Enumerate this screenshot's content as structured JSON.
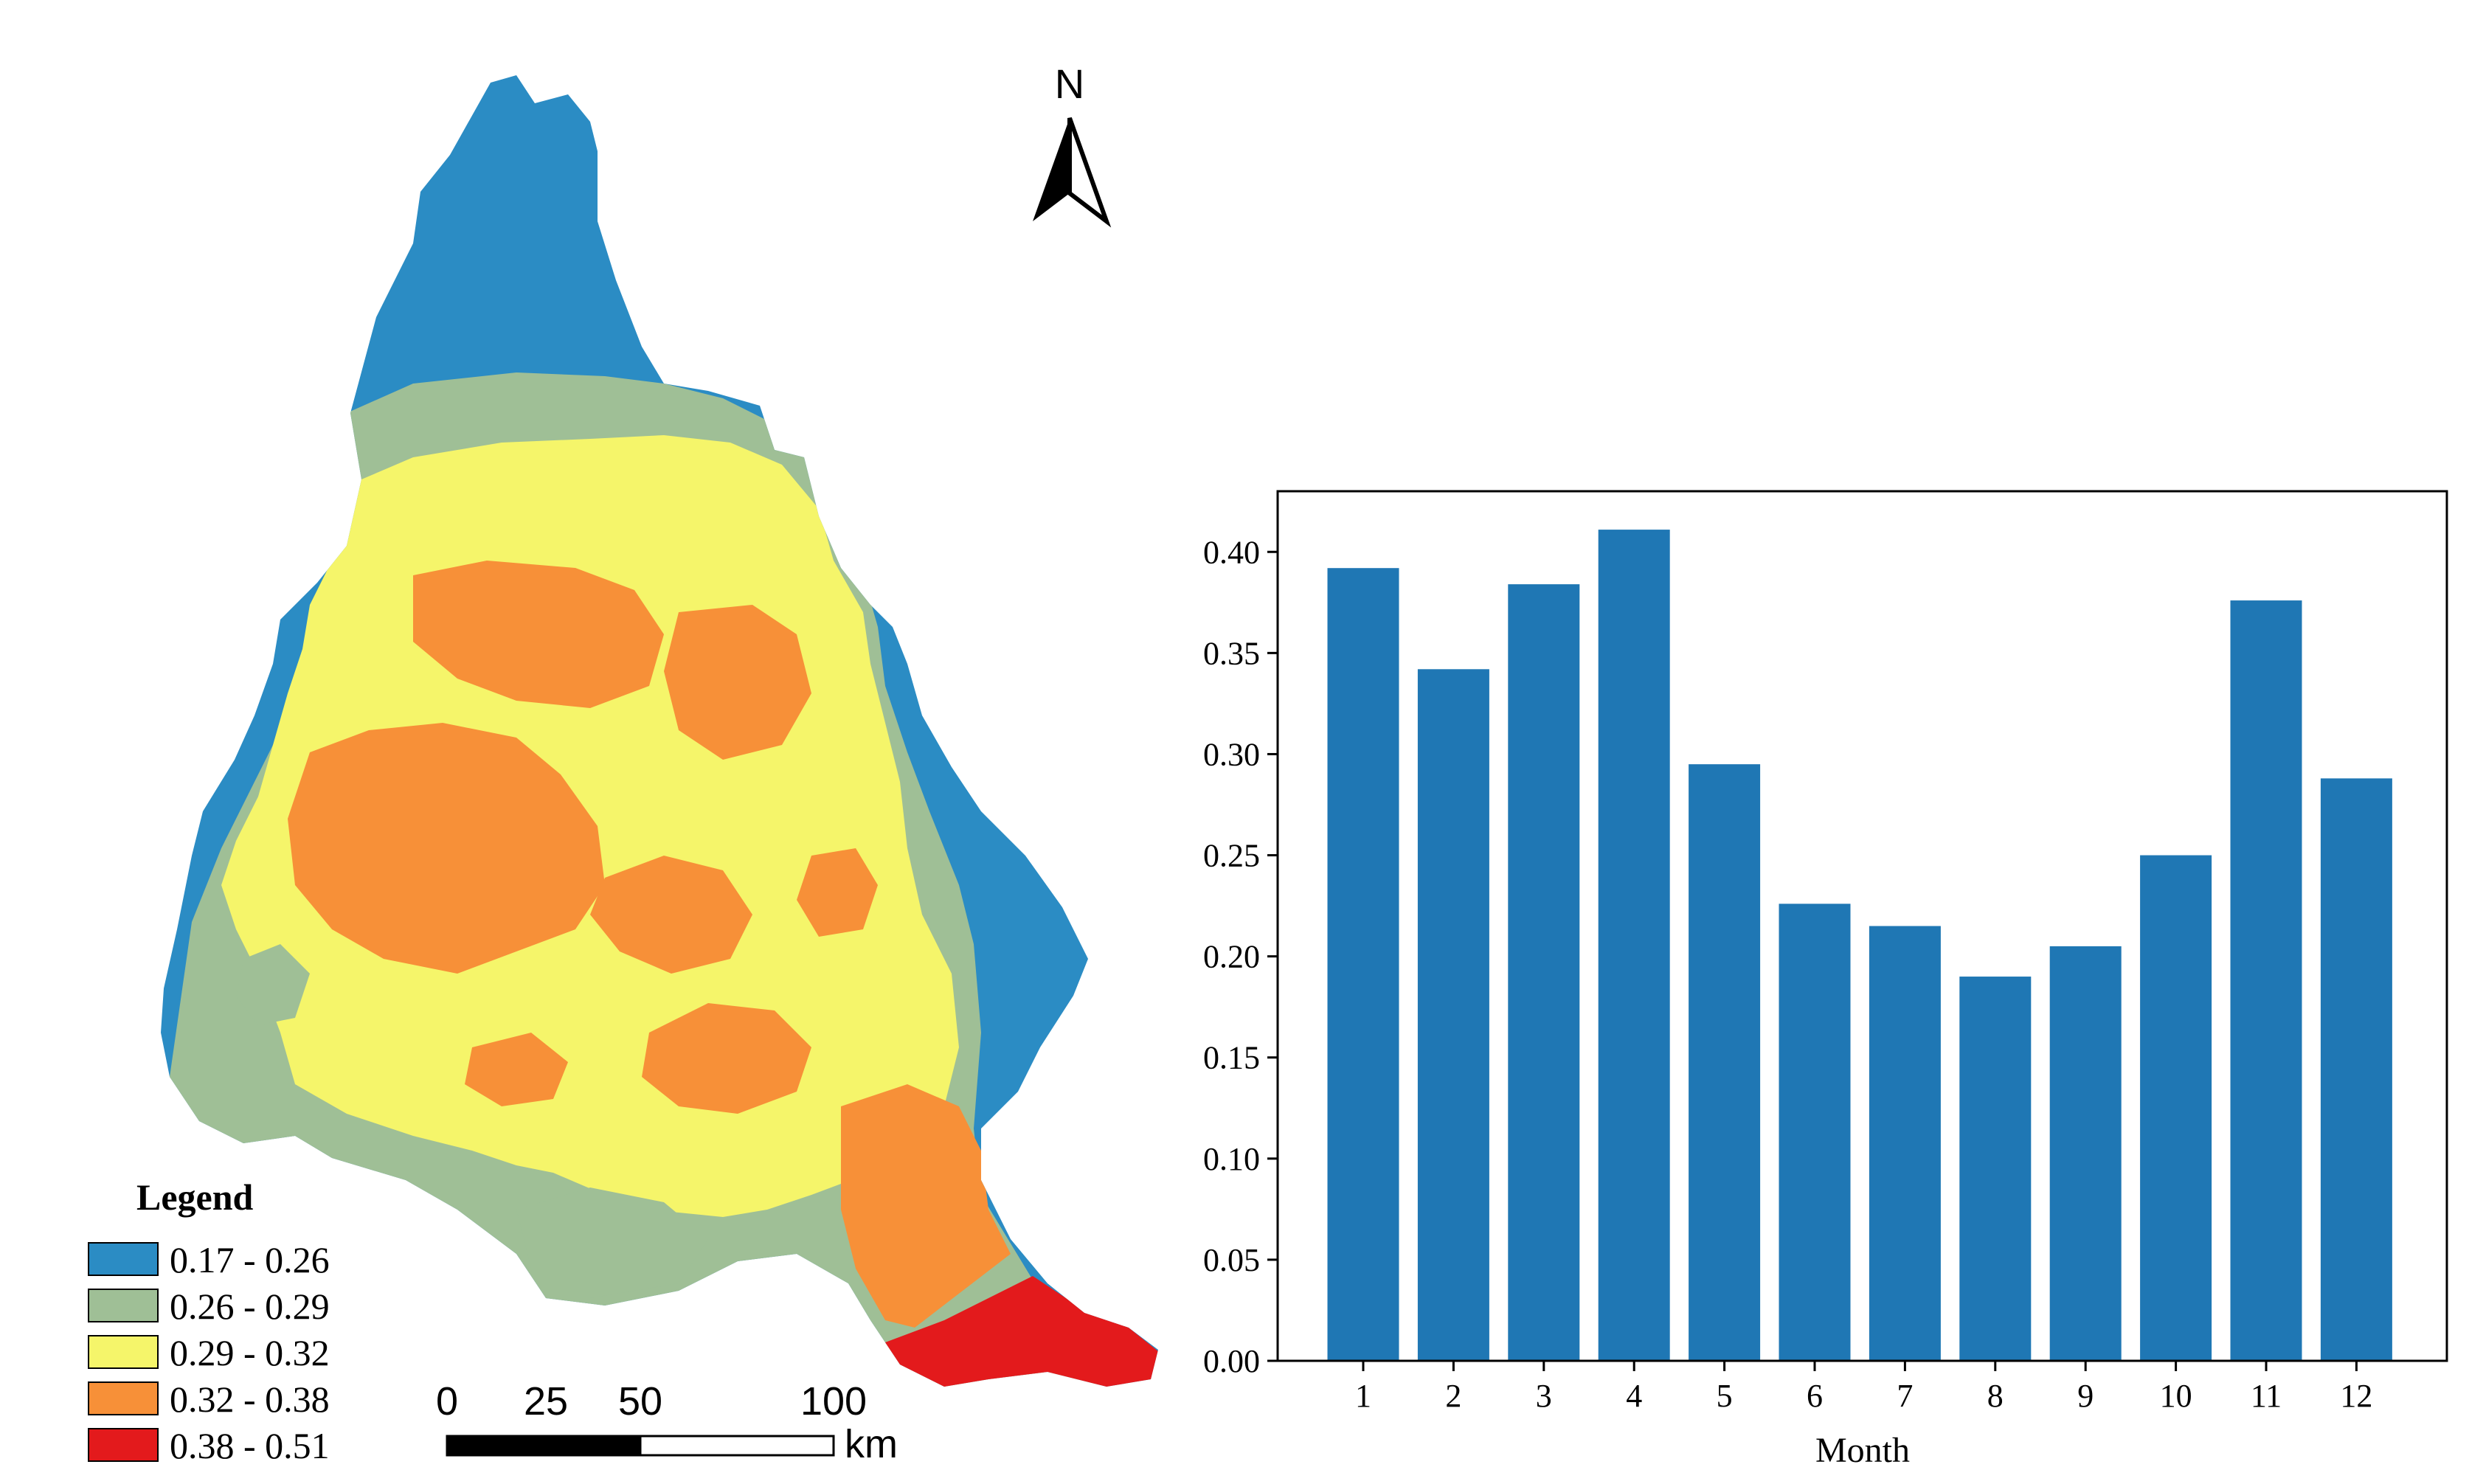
{
  "map": {
    "north_label": "N",
    "legend": {
      "title": "Legend",
      "classes": [
        {
          "label": "0.17 - 0.26",
          "color": "#2b8cc4"
        },
        {
          "label": "0.26 - 0.29",
          "color": "#9fbf96"
        },
        {
          "label": "0.29 - 0.32",
          "color": "#f5f56a"
        },
        {
          "label": "0.32 - 0.38",
          "color": "#f79038"
        },
        {
          "label": "0.38 - 0.51",
          "color": "#e31a1c"
        }
      ]
    },
    "scale_bar": {
      "ticks": [
        "0",
        "25",
        "50",
        "100"
      ],
      "unit": "km"
    }
  },
  "chart_data": {
    "type": "bar",
    "categories": [
      "1",
      "2",
      "3",
      "4",
      "5",
      "6",
      "7",
      "8",
      "9",
      "10",
      "11",
      "12"
    ],
    "values": [
      0.392,
      0.342,
      0.384,
      0.411,
      0.295,
      0.226,
      0.215,
      0.19,
      0.205,
      0.25,
      0.376,
      0.288
    ],
    "bar_color": "#1f77b4",
    "xlabel": "Month",
    "ylabel": "",
    "ylim": [
      0,
      0.43
    ],
    "yticks": [
      "0.00",
      "0.05",
      "0.10",
      "0.15",
      "0.20",
      "0.25",
      "0.30",
      "0.35",
      "0.40"
    ],
    "grid": false
  }
}
